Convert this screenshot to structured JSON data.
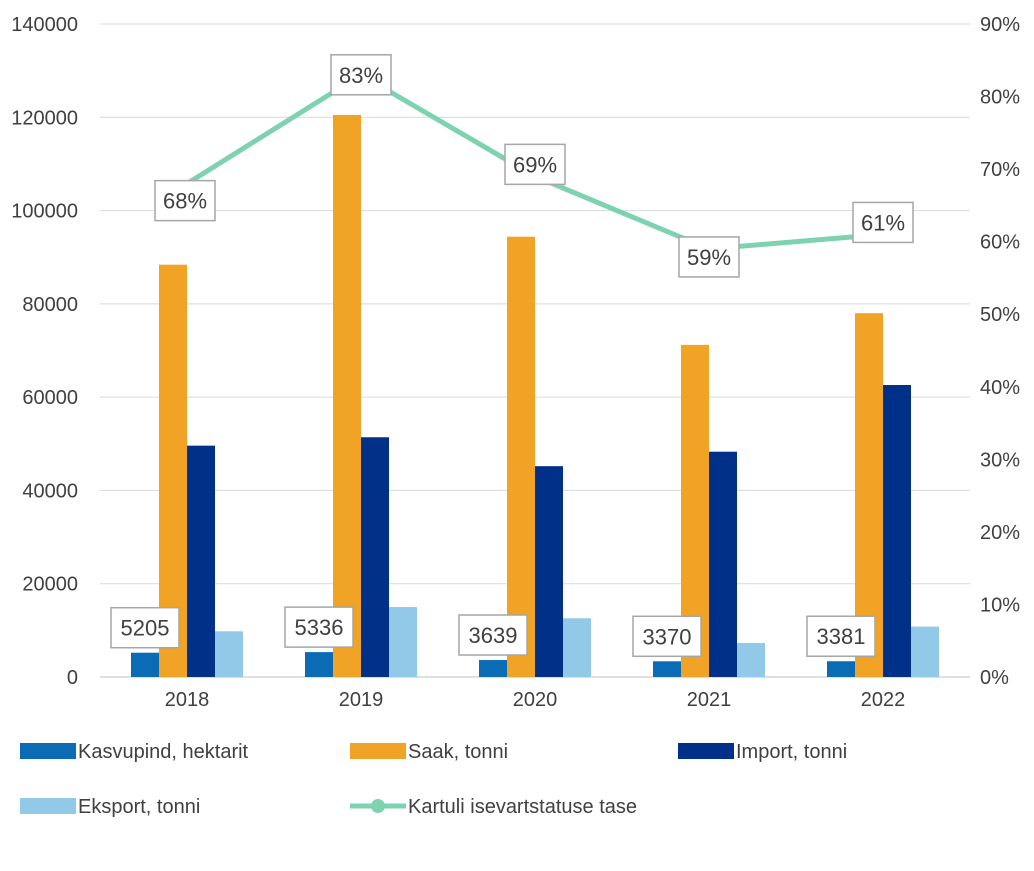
{
  "chart_data": {
    "type": "bar",
    "categories": [
      "2018",
      "2019",
      "2020",
      "2021",
      "2022"
    ],
    "series": [
      {
        "name": "Kasvupind, hektarit",
        "type": "bar",
        "axis": "left",
        "color": "#0b6bb5",
        "values": [
          5205,
          5336,
          3639,
          3370,
          3381
        ],
        "data_labels": [
          "5205",
          "5336",
          "3639",
          "3370",
          "3381"
        ]
      },
      {
        "name": "Saak, tonni",
        "type": "bar",
        "axis": "left",
        "color": "#f0a325",
        "values": [
          88400,
          120500,
          94400,
          71200,
          78000
        ]
      },
      {
        "name": "Import, tonni",
        "type": "bar",
        "axis": "left",
        "color": "#003087",
        "values": [
          49600,
          51400,
          45200,
          48300,
          62600
        ]
      },
      {
        "name": "Eksport, tonni",
        "type": "bar",
        "axis": "left",
        "color": "#93c9e8",
        "values": [
          9800,
          15000,
          12600,
          7300,
          10800
        ]
      },
      {
        "name": "Kartuli isevartstatuse tase",
        "type": "line",
        "axis": "right",
        "color": "#7dd3b0",
        "values": [
          68,
          83,
          69,
          59,
          61
        ],
        "data_labels": [
          "68%",
          "83%",
          "69%",
          "59%",
          "61%"
        ]
      }
    ],
    "left_axis": {
      "ylim": [
        0,
        140000
      ],
      "ticks": [
        "0",
        "20000",
        "40000",
        "60000",
        "80000",
        "100000",
        "120000",
        "140000"
      ]
    },
    "right_axis": {
      "ylim": [
        0,
        90
      ],
      "ticks": [
        "0%",
        "10%",
        "20%",
        "30%",
        "40%",
        "50%",
        "60%",
        "70%",
        "80%",
        "90%"
      ]
    },
    "grid": true,
    "legend_position": "bottom"
  }
}
